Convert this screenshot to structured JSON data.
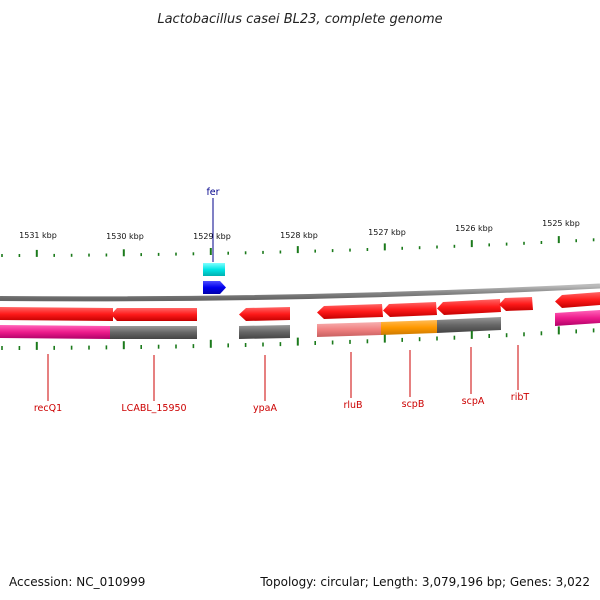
{
  "title": "Lactobacillus casei BL23, complete genome",
  "footer": {
    "accession": "Accession: NC_010999",
    "summary": "Topology: circular; Length: 3,079,196 bp; Genes: 3,022"
  },
  "scale_labels": [
    "1531 kbp",
    "1530 kbp",
    "1529 kbp",
    "1528 kbp",
    "1527 kbp",
    "1526 kbp",
    "1525 kbp"
  ],
  "gene_labels": [
    {
      "id": "fer",
      "text": "fer",
      "color": "#00008b"
    },
    {
      "id": "recQ1",
      "text": "recQ1",
      "color": "#cc0000"
    },
    {
      "id": "lcabl-15950",
      "text": "LCABL_15950",
      "color": "#cc0000"
    },
    {
      "id": "ypaA",
      "text": "ypaA",
      "color": "#cc0000"
    },
    {
      "id": "rluB",
      "text": "rluB",
      "color": "#cc0000"
    },
    {
      "id": "scpB",
      "text": "scpB",
      "color": "#cc0000"
    },
    {
      "id": "scpA",
      "text": "scpA",
      "color": "#cc0000"
    },
    {
      "id": "ribT",
      "text": "ribT",
      "color": "#cc0000"
    }
  ],
  "colors": {
    "gene_red": "#ff1a1a",
    "gene_blue": "#0000ee",
    "gene_cyan": "#00e5e5",
    "backbone": "#888888",
    "magenta": "#ee1c8c",
    "dark_gray": "#666666",
    "salmon": "#f08080",
    "orange": "#ff9900",
    "tick_green": "#1b7a1b"
  }
}
